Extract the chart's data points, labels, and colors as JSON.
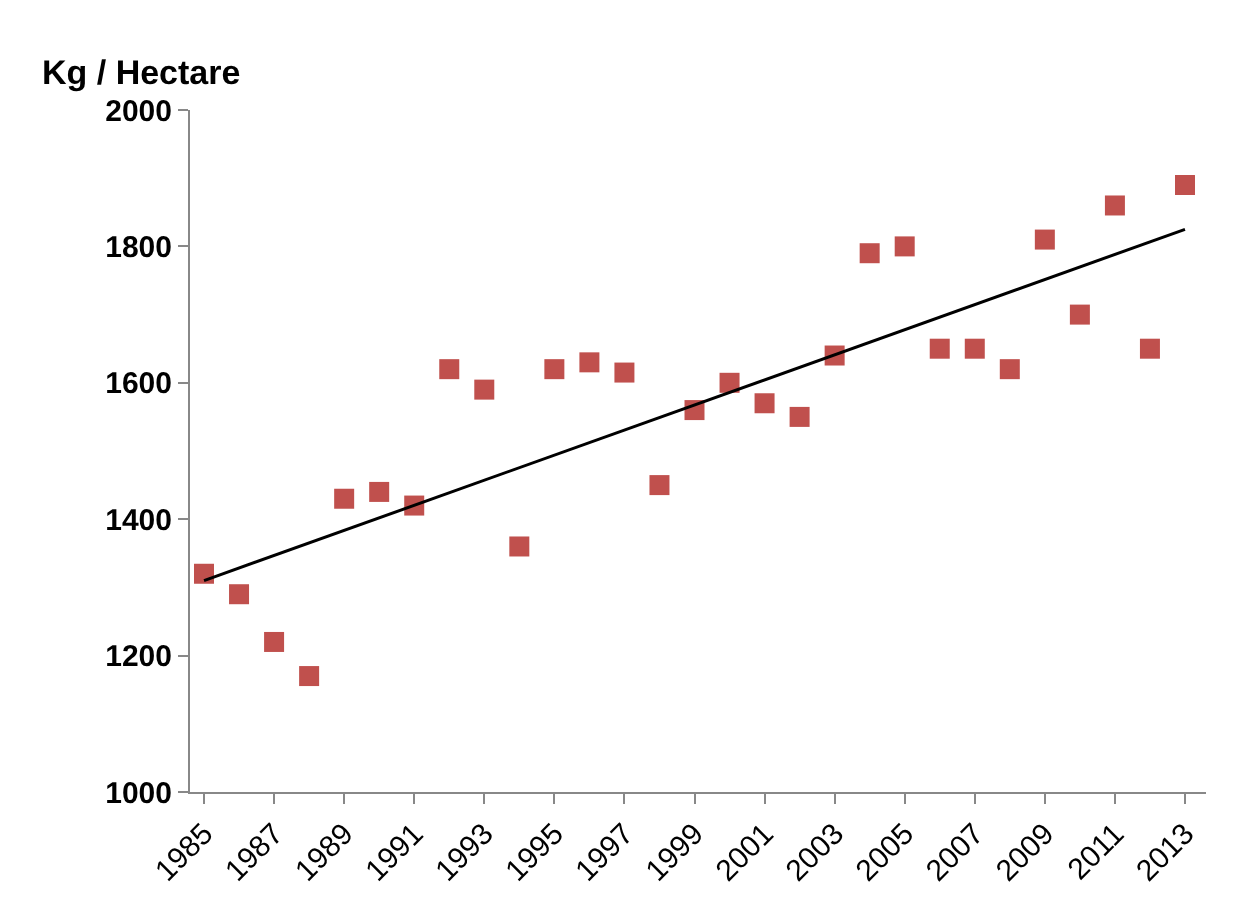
{
  "chart_data": {
    "type": "scatter",
    "ylabel": "Kg / Hectare",
    "grid": false,
    "legend": false,
    "x": [
      1985,
      1986,
      1987,
      1988,
      1989,
      1990,
      1991,
      1992,
      1993,
      1994,
      1995,
      1996,
      1997,
      1998,
      1999,
      2000,
      2001,
      2002,
      2003,
      2004,
      2005,
      2006,
      2007,
      2008,
      2009,
      2010,
      2011,
      2012,
      2013
    ],
    "series": [
      {
        "marker": "square",
        "color": "#c0504d",
        "values": [
          1320,
          1290,
          1220,
          1170,
          1430,
          1440,
          1420,
          1620,
          1590,
          1360,
          1620,
          1630,
          1615,
          1450,
          1560,
          1600,
          1570,
          1550,
          1640,
          1790,
          1800,
          1650,
          1650,
          1620,
          1810,
          1700,
          1860,
          1650,
          1890
        ]
      },
      {
        "type": "line",
        "marker": "none",
        "color": "#000000",
        "x": [
          1985,
          2013
        ],
        "values": [
          1310,
          1825
        ]
      }
    ],
    "xlim": [
      1984.6,
      2013.6
    ],
    "xticks": [
      1985,
      1987,
      1989,
      1991,
      1993,
      1995,
      1997,
      1999,
      2001,
      2003,
      2005,
      2007,
      2009,
      2011,
      2013
    ],
    "ylim": [
      1000,
      2000
    ],
    "yticks": [
      1000,
      1200,
      1400,
      1600,
      1800,
      2000
    ]
  }
}
